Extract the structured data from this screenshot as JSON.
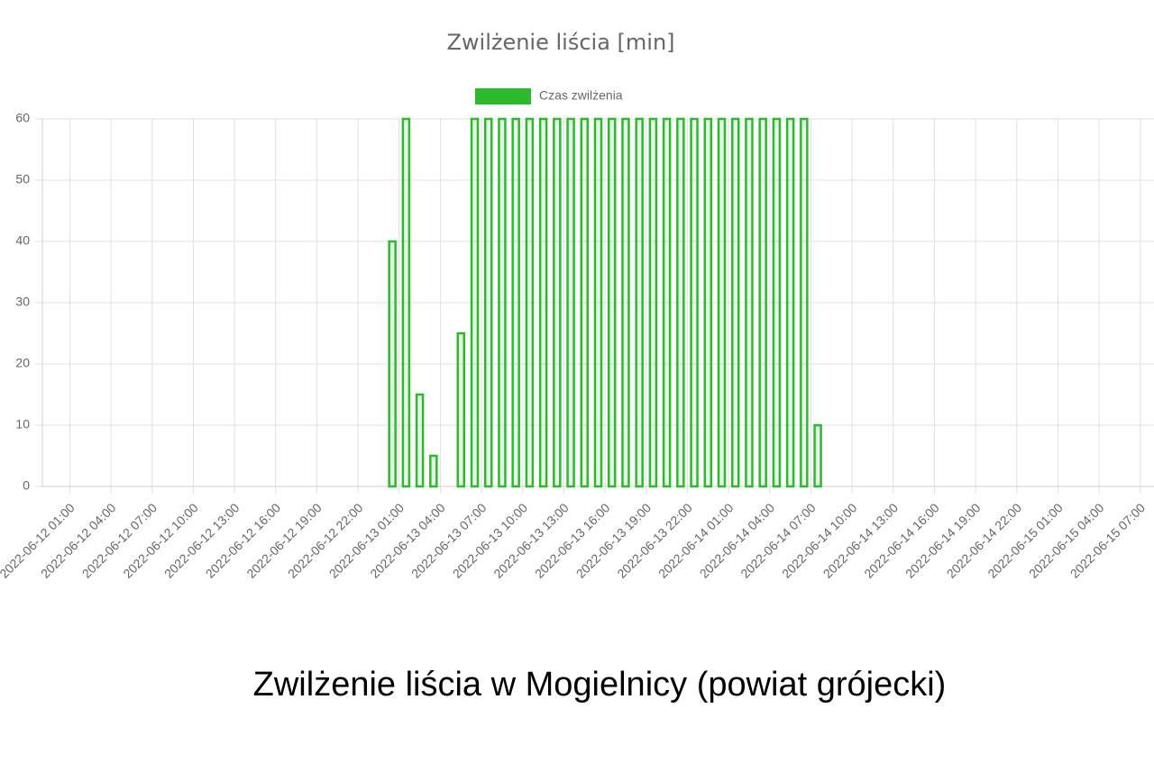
{
  "chart_data": {
    "type": "bar",
    "title": "Zwilżenie liścia [min]",
    "caption": "Zwilżenie liścia w Mogielnicy (powiat grójecki)",
    "categories": [
      null,
      null,
      "2022-06-12 01:00",
      null,
      null,
      "2022-06-12 04:00",
      null,
      null,
      "2022-06-12 07:00",
      null,
      null,
      "2022-06-12 10:00",
      null,
      null,
      "2022-06-12 13:00",
      null,
      null,
      "2022-06-12 16:00",
      null,
      null,
      "2022-06-12 19:00",
      null,
      null,
      "2022-06-12 22:00",
      null,
      null,
      "2022-06-13 01:00",
      null,
      null,
      "2022-06-13 04:00",
      null,
      null,
      "2022-06-13 07:00",
      null,
      null,
      "2022-06-13 10:00",
      null,
      null,
      "2022-06-13 13:00",
      null,
      null,
      "2022-06-13 16:00",
      null,
      null,
      "2022-06-13 19:00",
      null,
      null,
      "2022-06-13 22:00",
      null,
      null,
      "2022-06-14 01:00",
      null,
      null,
      "2022-06-14 04:00",
      null,
      null,
      "2022-06-14 07:00",
      null,
      null,
      "2022-06-14 10:00",
      null,
      null,
      "2022-06-14 13:00",
      null,
      null,
      "2022-06-14 16:00",
      null,
      null,
      "2022-06-14 19:00",
      null,
      null,
      "2022-06-14 22:00",
      null,
      null,
      "2022-06-15 01:00",
      null,
      null,
      "2022-06-15 04:00",
      null,
      null,
      "2022-06-15 07:00"
    ],
    "series": [
      {
        "name": "Czas zwilżenia",
        "color": "#2eb82e",
        "values": [
          0,
          0,
          0,
          0,
          0,
          0,
          0,
          0,
          0,
          0,
          0,
          0,
          0,
          0,
          0,
          0,
          0,
          0,
          0,
          0,
          0,
          0,
          0,
          0,
          0,
          40,
          60,
          15,
          5,
          0,
          25,
          60,
          60,
          60,
          60,
          60,
          60,
          60,
          60,
          60,
          60,
          60,
          60,
          60,
          60,
          60,
          60,
          60,
          60,
          60,
          60,
          60,
          60,
          60,
          60,
          60,
          10,
          0,
          0,
          0,
          0,
          0,
          0,
          0,
          0,
          0,
          0,
          0,
          0,
          0,
          0,
          0,
          0,
          0,
          0,
          0,
          0,
          0,
          0,
          0,
          0
        ]
      }
    ],
    "ylim": [
      0,
      60
    ],
    "yticks": [
      0,
      10,
      20,
      30,
      40,
      50,
      60
    ],
    "grid": true,
    "legend": "top"
  }
}
